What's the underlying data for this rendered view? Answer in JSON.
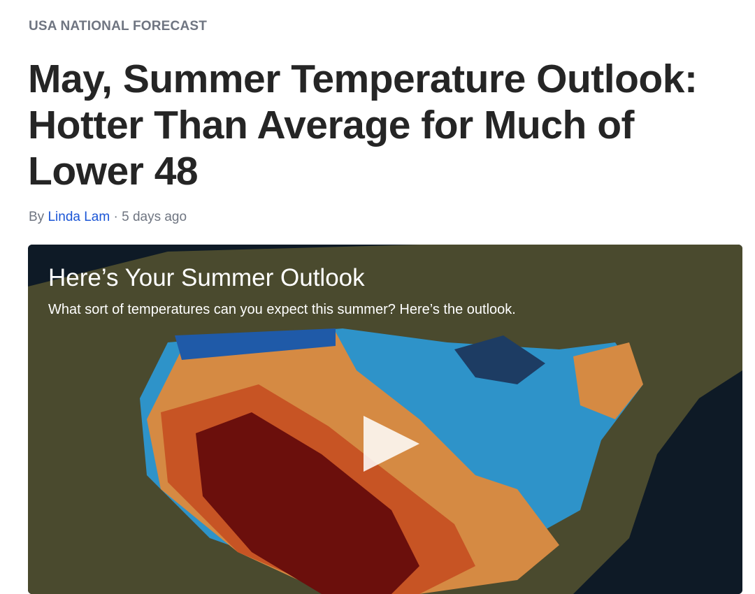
{
  "kicker": "USA NATIONAL FORECAST",
  "headline": "May, Summer Temperature Outlook: Hotter Than Average for Much of Lower 48",
  "byline": {
    "prefix": "By",
    "author": "Linda Lam",
    "separator": "·",
    "time": "5 days ago"
  },
  "video": {
    "title": "Here’s Your Summer Outlook",
    "description": "What sort of temperatures can you expect this summer? Here’s the outlook."
  }
}
